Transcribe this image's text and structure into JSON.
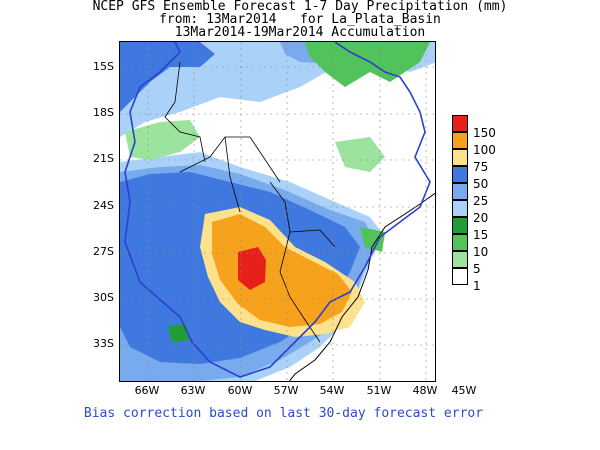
{
  "title": {
    "line1": "NCEP GFS Ensemble Forecast 1-7 Day Precipitation (mm)",
    "line2": "from: 13Mar2014   for La_Plata_Basin",
    "line3": "13Mar2014-19Mar2014 Accumulation"
  },
  "map": {
    "region": "La_Plata_Basin",
    "lat_labels": [
      "15S",
      "18S",
      "21S",
      "24S",
      "27S",
      "30S",
      "33S"
    ],
    "lon_labels": [
      "66W",
      "63W",
      "60W",
      "57W",
      "54W",
      "51W",
      "48W",
      "45W"
    ]
  },
  "legend": {
    "levels": [
      {
        "label": "150",
        "color": "#e8201c"
      },
      {
        "label": "100",
        "color": "#f7a21c"
      },
      {
        "label": "75",
        "color": "#fde28e"
      },
      {
        "label": "50",
        "color": "#3f79e0"
      },
      {
        "label": "25",
        "color": "#78aaee"
      },
      {
        "label": "20",
        "color": "#aad2f8"
      },
      {
        "label": "15",
        "color": "#1e9e35"
      },
      {
        "label": "10",
        "color": "#52c25a"
      },
      {
        "label": "5",
        "color": "#9ce39d"
      },
      {
        "label": "1",
        "color": "#ffffff"
      }
    ]
  },
  "footnote": "Bias correction based on last 30-day forecast error"
}
